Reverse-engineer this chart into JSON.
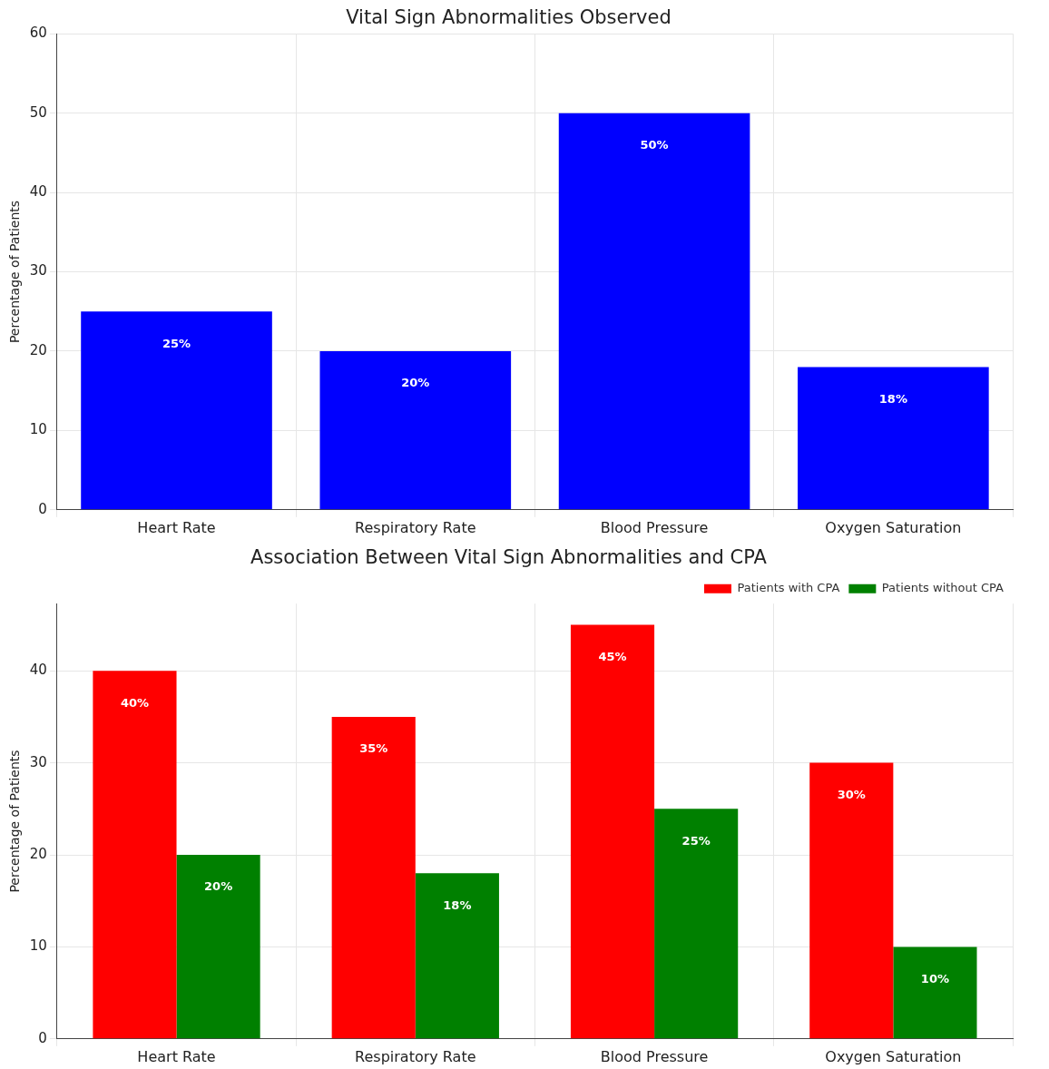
{
  "chart_data": [
    {
      "type": "bar",
      "title": "Vital Sign Abnormalities Observed",
      "ylabel": "Percentage of Patients",
      "categories": [
        "Heart Rate",
        "Respiratory Rate",
        "Blood Pressure",
        "Oxygen Saturation"
      ],
      "values": [
        25,
        20,
        50,
        18
      ],
      "color": "#0000ff",
      "value_labels": [
        "25%",
        "20%",
        "50%",
        "18%"
      ],
      "ylim": [
        0,
        60
      ],
      "yticks": [
        0,
        10,
        20,
        30,
        40,
        50,
        60
      ],
      "grid": true
    },
    {
      "type": "bar",
      "title": "Association Between Vital Sign Abnormalities and CPA",
      "ylabel": "Percentage of Patients",
      "categories": [
        "Heart Rate",
        "Respiratory Rate",
        "Blood Pressure",
        "Oxygen Saturation"
      ],
      "series": [
        {
          "name": "Patients with CPA",
          "color": "#ff0000",
          "values": [
            40,
            35,
            45,
            30
          ],
          "value_labels": [
            "40%",
            "35%",
            "45%",
            "30%"
          ]
        },
        {
          "name": "Patients without CPA",
          "color": "#008000",
          "values": [
            20,
            18,
            25,
            10
          ],
          "value_labels": [
            "20%",
            "18%",
            "25%",
            "10%"
          ]
        }
      ],
      "ylim": [
        0,
        47.3
      ],
      "yticks": [
        0,
        10,
        20,
        30,
        40
      ],
      "grid": true,
      "legend": "top right"
    }
  ]
}
